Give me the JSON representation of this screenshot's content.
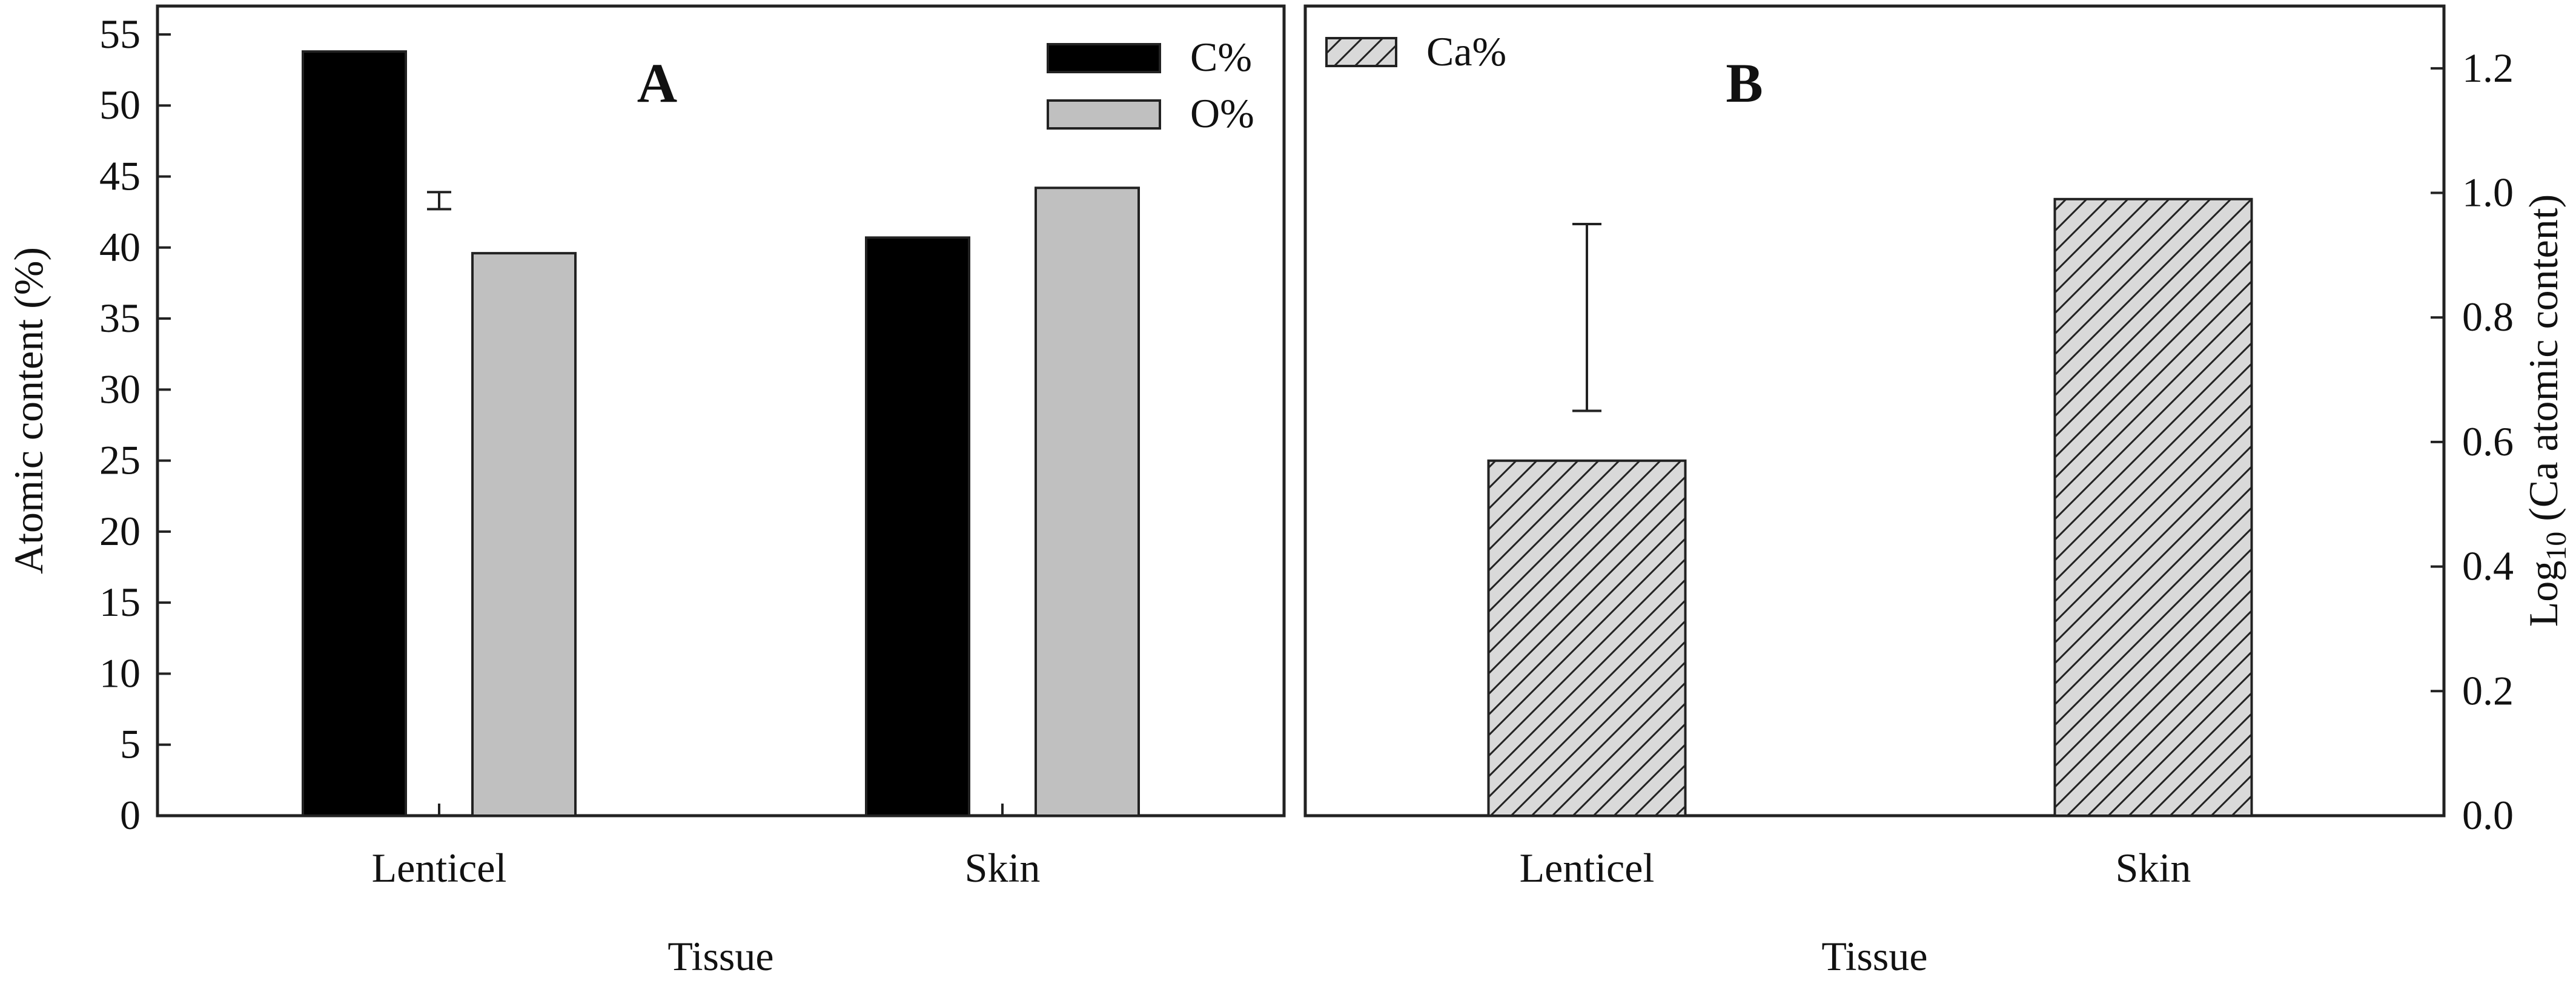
{
  "chart_data": [
    {
      "type": "bar",
      "panel_label": "A",
      "categories": [
        "Lenticel",
        "Skin"
      ],
      "series": [
        {
          "name": "C%",
          "values": [
            53.8,
            40.7
          ],
          "color": "#000000"
        },
        {
          "name": "O%",
          "values": [
            39.6,
            44.2
          ],
          "color": "#c0c0c0"
        }
      ],
      "error_marker": {
        "category": "Lenticel",
        "value": 43.3,
        "low": 42.7,
        "high": 43.9
      },
      "xlabel": "Tissue",
      "ylabel": "Atomic content (%)",
      "ylim": [
        0,
        57
      ],
      "yticks": [
        0,
        5,
        10,
        15,
        20,
        25,
        30,
        35,
        40,
        45,
        50,
        55
      ],
      "legend": "top-right",
      "grid": false
    },
    {
      "type": "bar",
      "panel_label": "B",
      "categories": [
        "Lenticel",
        "Skin"
      ],
      "series": [
        {
          "name": "Ca%",
          "values": [
            0.57,
            0.99
          ],
          "pattern": "diagonal-hatch",
          "color": "#d9d9d9"
        }
      ],
      "error_bar": {
        "category": "Lenticel",
        "low": 0.65,
        "high": 0.95
      },
      "xlabel": "Tissue",
      "ylabel_main": "Log",
      "ylabel_sub": "10",
      "ylabel_rest": " (Ca atomic content)",
      "ylim": [
        0,
        1.3
      ],
      "yticks": [
        "0.0",
        "0.2",
        "0.4",
        "0.6",
        "0.8",
        "1.0",
        "1.2"
      ],
      "y_axis_side": "right",
      "legend": "top-left",
      "grid": false
    }
  ]
}
